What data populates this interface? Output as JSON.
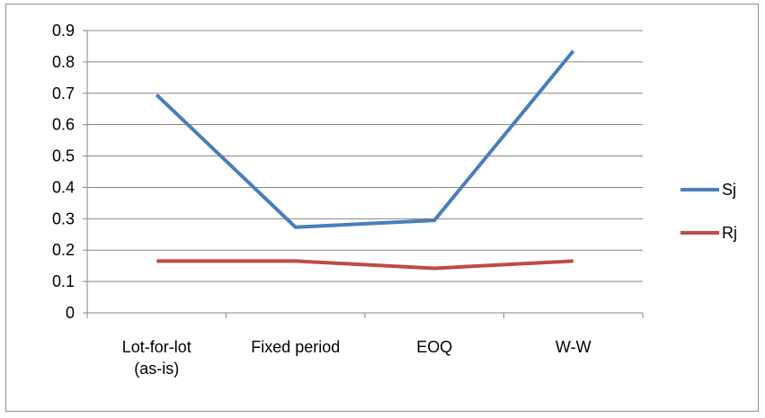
{
  "chart_data": {
    "type": "line",
    "title": "",
    "xlabel": "",
    "ylabel": "",
    "categories": [
      [
        "Lot-for-lot",
        "(as-is)"
      ],
      [
        "Fixed period"
      ],
      [
        "EOQ"
      ],
      [
        "W-W"
      ]
    ],
    "series": [
      {
        "name": "Sj",
        "color": "#4a7ebb",
        "values": [
          0.695,
          0.273,
          0.295,
          0.835
        ]
      },
      {
        "name": "Rj",
        "color": "#be4b48",
        "values": [
          0.165,
          0.165,
          0.142,
          0.165
        ]
      }
    ],
    "ylim": [
      0,
      0.9
    ],
    "yticks": [
      "0",
      "0.1",
      "0.2",
      "0.3",
      "0.4",
      "0.5",
      "0.6",
      "0.7",
      "0.8",
      "0.9"
    ],
    "grid": true,
    "legend_position": "right"
  }
}
